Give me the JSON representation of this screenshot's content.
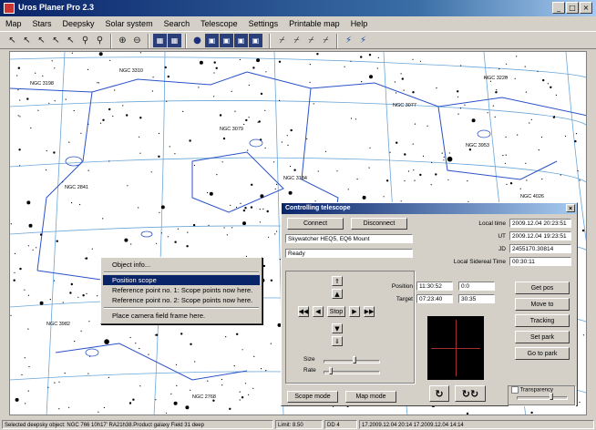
{
  "window": {
    "title": "Uros Planer Pro 2.3"
  },
  "menu": [
    "Map",
    "Stars",
    "Deepsky",
    "Solar system",
    "Search",
    "Telescope",
    "Settings",
    "Printable map",
    "Help"
  ],
  "toolbar_icons": [
    "arrow-icon",
    "arrow-icon",
    "arrow-icon",
    "arrow-icon",
    "arrow-icon",
    "zoom-icon",
    "zoom-icon",
    "zoom-in-icon",
    "zoom-out-icon",
    "grid-icon",
    "grid-icon",
    "sphere-icon",
    "panel-icon",
    "panel-icon",
    "panel-icon",
    "panel-icon",
    "telescope-icon",
    "telescope-icon",
    "telescope-icon",
    "telescope-icon",
    "scope-connect-icon",
    "scope-disconnect-icon"
  ],
  "context_menu": {
    "items": [
      "Object info...",
      "Position scope",
      "Reference point no. 1: Scope points now here.",
      "Reference point no. 2: Scope points now here.",
      "Place camera field frame here."
    ],
    "selected_index": 1
  },
  "dialog": {
    "title": "Controlling telescope",
    "connect": "Connect",
    "disconnect": "Disconnect",
    "scope_name": "Skywatcher HEQ5, EQ6 Mount",
    "state": "Ready",
    "times": [
      {
        "label": "Local time",
        "value": "2009.12.04 20:23:51"
      },
      {
        "label": "UT",
        "value": "2009.12.04 19:23:51"
      },
      {
        "label": "JD",
        "value": "2455170.30814"
      },
      {
        "label": "Local Sidereal Time",
        "value": "00:30:11"
      }
    ],
    "position_label": "Position",
    "target_label": "Target",
    "position_ra": "11:30:52",
    "position_dec": "0:0",
    "target_ra": "07:23:40",
    "target_dec": "30:35",
    "stop": "Stop",
    "size_label": "Size",
    "rate_label": "Rate",
    "scope_mode": "Scope mode",
    "map_mode": "Map mode",
    "transparency": "Transparency",
    "right_buttons": [
      "Get pos",
      "Move to",
      "Tracking",
      "Set park",
      "Go to park"
    ],
    "rotate_buttons": [
      "↻",
      "↻↻"
    ]
  },
  "status": [
    "Selected deepsky object: NGC 766 10h17' RA21h38.Product galaxy  Field 31 deep",
    "Limit: 8.50",
    "DD 4",
    "17.2009.12.04 20:14  17.2009.12.04 14:14"
  ],
  "labels_on_map": [
    "NGC 3198",
    "NGC 3310",
    "NGC 3079",
    "NGC 3184",
    "NGC 2841",
    "NGC 3077",
    "NGC 3953",
    "NGC 2681",
    "NGC 3665",
    "NGC 3982",
    "NGC 3147",
    "NGC 2768",
    "NGC 3226",
    "NGC 4026"
  ]
}
